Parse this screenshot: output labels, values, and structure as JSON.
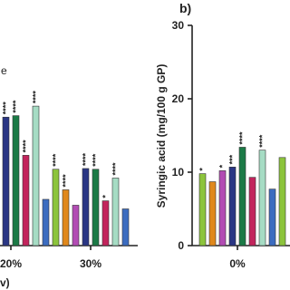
{
  "chart_data": [
    {
      "type": "bar",
      "annotation": "e",
      "xlabel": "v)",
      "categories": [
        "20%",
        "30%"
      ],
      "ylim": [
        0,
        30
      ],
      "series": [
        {
          "color": "#8cc43c",
          "values": [
            null,
            10.4
          ],
          "significance": [
            null,
            "****"
          ]
        },
        {
          "color": "#e0881c",
          "values": [
            null,
            7.6
          ],
          "significance": [
            null,
            "****"
          ]
        },
        {
          "color": "#b24cb4",
          "values": [
            null,
            5.5
          ],
          "significance": [
            null,
            null
          ]
        },
        {
          "color": "#2a3684",
          "values": [
            17.5,
            10.5
          ],
          "significance": [
            "****",
            "****"
          ]
        },
        {
          "color": "#1b7a46",
          "values": [
            17.7,
            10.4
          ],
          "significance": [
            "****",
            "****"
          ]
        },
        {
          "color": "#c2245c",
          "values": [
            12.3,
            6.1
          ],
          "significance": [
            "****",
            "*"
          ]
        },
        {
          "color": "#a6dcc4",
          "values": [
            19.0,
            9.2
          ],
          "significance": [
            "****",
            "****"
          ]
        },
        {
          "color": "#3c6cc0",
          "values": [
            6.3,
            5.0
          ],
          "significance": [
            null,
            null
          ]
        }
      ]
    },
    {
      "type": "bar",
      "panel": "b)",
      "ylabel": "Syringic acid (mg/100 g GP)",
      "categories": [
        "0%",
        null
      ],
      "ylim": [
        0,
        30
      ],
      "yticks": [
        0,
        10,
        20,
        30
      ],
      "series": [
        {
          "color": "#8cc43c",
          "values": [
            9.8,
            12.0
          ],
          "significance": [
            "*",
            null
          ]
        },
        {
          "color": "#e0881c",
          "values": [
            8.7,
            null
          ],
          "significance": [
            null,
            null
          ]
        },
        {
          "color": "#b24cb4",
          "values": [
            10.2,
            null
          ],
          "significance": [
            "*",
            null
          ]
        },
        {
          "color": "#2a3684",
          "values": [
            10.7,
            null
          ],
          "significance": [
            "***",
            null
          ]
        },
        {
          "color": "#1b7a46",
          "values": [
            13.4,
            null
          ],
          "significance": [
            "****",
            null
          ]
        },
        {
          "color": "#c2245c",
          "values": [
            9.3,
            null
          ],
          "significance": [
            null,
            null
          ]
        },
        {
          "color": "#a6dcc4",
          "values": [
            13.0,
            null
          ],
          "significance": [
            "****",
            null
          ]
        },
        {
          "color": "#3c6cc0",
          "values": [
            7.7,
            null
          ],
          "significance": [
            null,
            null
          ]
        }
      ]
    }
  ]
}
